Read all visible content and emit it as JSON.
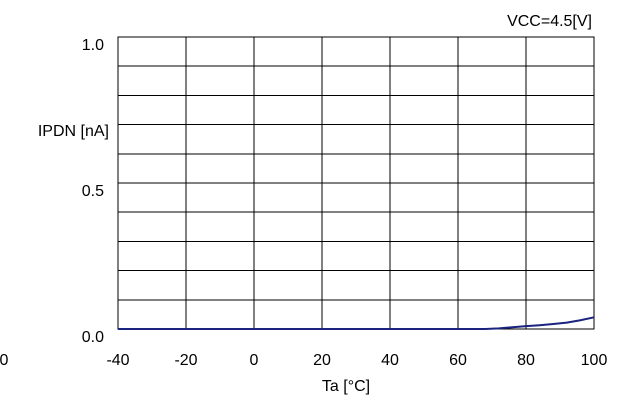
{
  "chart_data": {
    "type": "line",
    "title": "",
    "condition_label": "VCC=4.5[V]",
    "xlabel": "Ta [°C]",
    "ylabel": "IPDN [nA]",
    "xlim": [
      -40,
      100
    ],
    "ylim": [
      0.0,
      1.0
    ],
    "x_ticks": [
      -40,
      -20,
      0,
      20,
      40,
      60,
      80,
      100
    ],
    "x_tick_labels": [
      "-40",
      "-20",
      "0",
      "20",
      "40",
      "60",
      "80",
      "100"
    ],
    "y_ticks": [
      0.0,
      0.5,
      1.0
    ],
    "y_tick_labels": [
      "0.0",
      "0.5",
      "1.0"
    ],
    "cut_off_left_label": "0",
    "vertical_grid_step": 20,
    "horizontal_grid_step": 0.1,
    "grid": true,
    "series": [
      {
        "color": "#1a237e",
        "x": [
          -40,
          -20,
          0,
          20,
          40,
          60,
          68,
          72,
          76,
          80,
          84,
          88,
          92,
          96,
          100
        ],
        "y": [
          0.0,
          0.0,
          0.0,
          0.0,
          0.0,
          0.0,
          0.0,
          0.002,
          0.006,
          0.01,
          0.013,
          0.017,
          0.022,
          0.03,
          0.04
        ]
      }
    ]
  }
}
